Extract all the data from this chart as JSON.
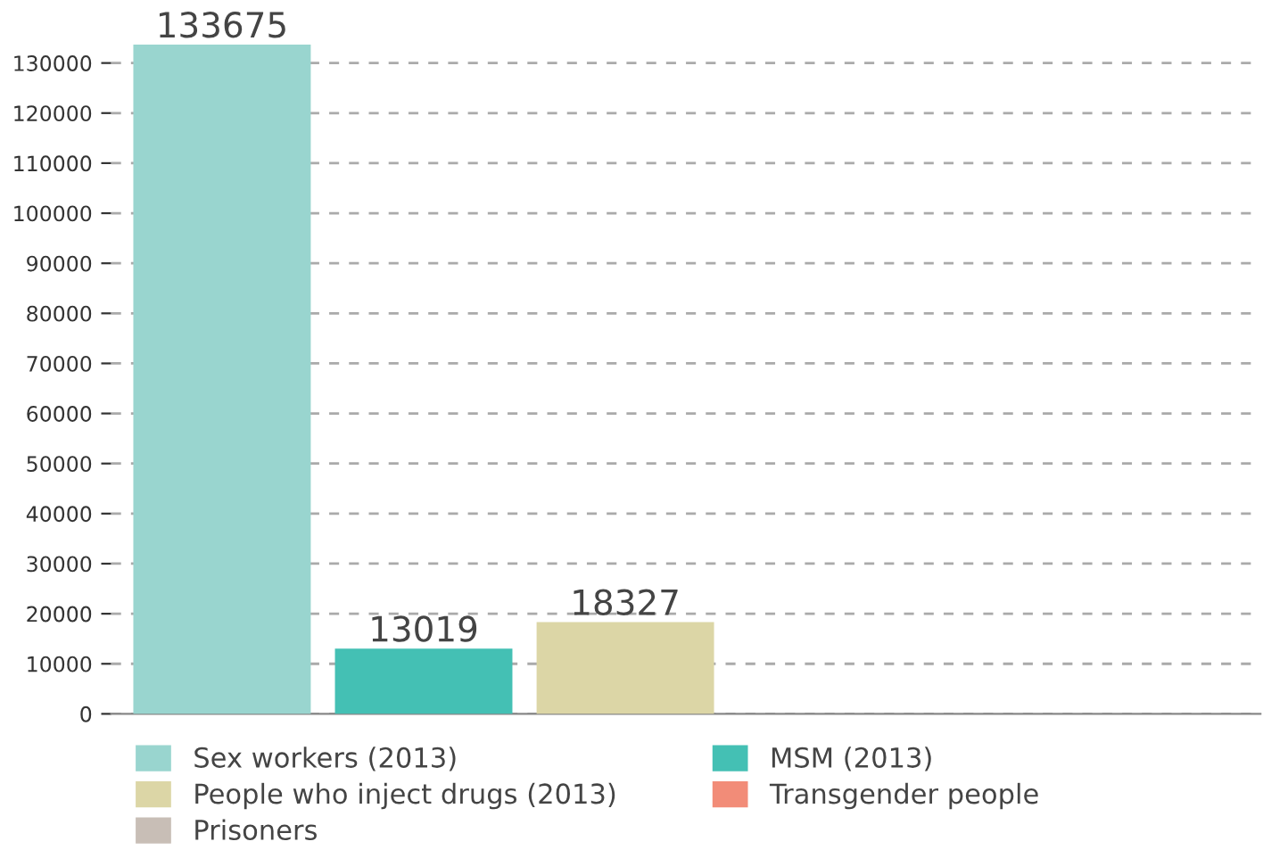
{
  "chart_data": {
    "type": "bar",
    "categories": [
      null
    ],
    "series": [
      {
        "name": "Sex workers (2013)",
        "color": "#99d5cf",
        "values": [
          133675
        ]
      },
      {
        "name": "MSM (2013)",
        "color": "#44c0b4",
        "values": [
          13019
        ]
      },
      {
        "name": "People who inject drugs (2013)",
        "color": "#dcd6a6",
        "values": [
          18327
        ]
      },
      {
        "name": "Transgender people",
        "color": "#f28c78",
        "values": [
          null
        ]
      },
      {
        "name": "Prisoners",
        "color": "#c8beb6",
        "values": [
          null
        ]
      }
    ],
    "ylim": [
      0,
      133675
    ],
    "yticks": [
      0,
      10000,
      20000,
      30000,
      40000,
      50000,
      60000,
      70000,
      80000,
      90000,
      100000,
      110000,
      120000,
      130000
    ],
    "grid": "y",
    "data_labels": true,
    "legend": "bottom"
  }
}
